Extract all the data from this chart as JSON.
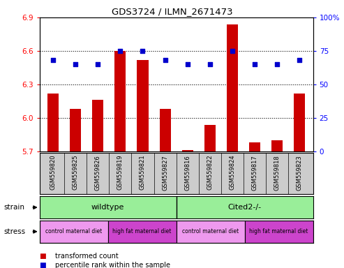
{
  "title": "GDS3724 / ILMN_2671473",
  "samples": [
    "GSM559820",
    "GSM559825",
    "GSM559826",
    "GSM559819",
    "GSM559821",
    "GSM559827",
    "GSM559816",
    "GSM559822",
    "GSM559824",
    "GSM559817",
    "GSM559818",
    "GSM559823"
  ],
  "bar_values": [
    6.22,
    6.08,
    6.16,
    6.6,
    6.52,
    6.08,
    5.71,
    5.94,
    6.84,
    5.78,
    5.8,
    6.22
  ],
  "percentile_values": [
    68,
    65,
    65,
    75,
    75,
    68,
    65,
    65,
    75,
    65,
    65,
    68
  ],
  "ylim_left": [
    5.7,
    6.9
  ],
  "ylim_right": [
    0,
    100
  ],
  "yticks_left": [
    5.7,
    6.0,
    6.3,
    6.6,
    6.9
  ],
  "yticks_right": [
    0,
    25,
    50,
    75,
    100
  ],
  "ytick_labels_right": [
    "0",
    "25",
    "50",
    "75",
    "100%"
  ],
  "bar_color": "#cc0000",
  "dot_color": "#0000cc",
  "gridline_values": [
    6.0,
    6.3,
    6.6
  ],
  "strain_labels": [
    "wildtype",
    "Cited2-/-"
  ],
  "strain_color": "#99ee99",
  "stress_labels": [
    "control maternal diet",
    "high fat maternal diet",
    "control maternal diet",
    "high fat maternal diet"
  ],
  "stress_color_a": "#ee99ee",
  "stress_color_b": "#cc44cc",
  "legend_items": [
    {
      "color": "#cc0000",
      "label": "transformed count"
    },
    {
      "color": "#0000cc",
      "label": "percentile rank within the sample"
    }
  ],
  "xlabel_area_color": "#cccccc",
  "bar_width": 0.5,
  "dot_size": 20
}
